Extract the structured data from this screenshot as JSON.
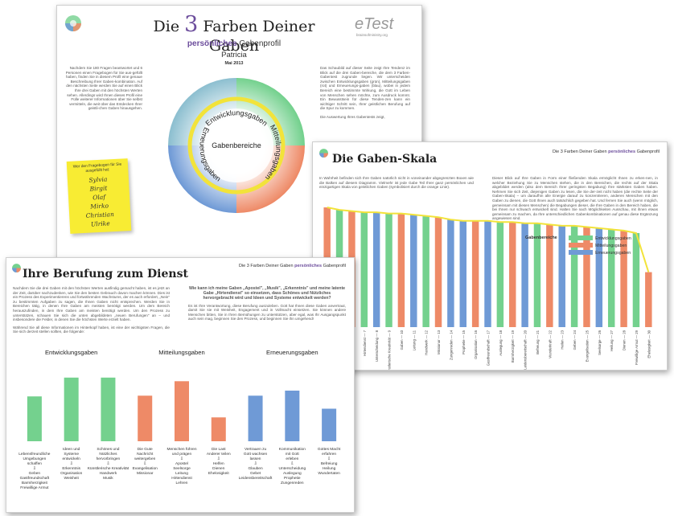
{
  "page1": {
    "title_pre": "Die",
    "title_num": "3",
    "title_post": "Farben Deiner Gaben",
    "subtitle_bold": "persönliches",
    "subtitle_rest": "Gabenprofil",
    "name": "Patricia",
    "date": "Mai 2013",
    "brand": "eTest",
    "brand_sub": "brainsofministry.org",
    "intro_left": "Nachdem Sie 180 Fragen beantwortet und 6 Personen einen Fragebogen für Sie aus-gefüllt haben, finden Sie in diesem Profil eine genaue Beschreibung Ihrer Gaben-kombination. Auf den nächsten Seite werden Sie auf einen Blick Ihre drei Gaben mit den höchsten Werten sehen. Allerdings wird Ihnen dieses Profil eine Fülle weiterer Informationen über Sie selbst vermitteln, die weit über das Entdecken Ihrer geistli-chen Gaben hinausgehen.",
    "intro_right": "Das Schaubild auf dieser Seite zeigt Ihre Tendenz im Blick auf die drei Gaben-bereiche, die dem 3 Farben-Gabentest zugrunde liegen. Wir unterscheiden zwischen Entwicklungsgaben (grün), Mitteilungsgaben (rot) und Erneuerungs-gaben (blau), wobei in jedem Bereich eine bestimmte Wirkung, die Gott im Leben von Menschen sehen möchte, zum Ausdruck kommt. Ein Bewusstsein für diese Tenden-zen kann ein wichtiger Schritt sein, Ihrer geistlichen Berufung auf die Spur zu kommen.",
    "intro_right2": "Die Auswertung Ihres Gabentests zeigt,",
    "wheel_labels": {
      "center": "Gabenbereiche",
      "top": "Entwicklungsgaben",
      "right": "Mitteilungsgaben",
      "left": "Erneuerungsgaben"
    },
    "sticky": {
      "header": "Wer den Fragebogen für Sie ausgefüllt hat:",
      "names": [
        "Sylvia",
        "Birgit",
        "Olaf",
        "Mirko",
        "Christian",
        "Ulrike"
      ]
    }
  },
  "page2": {
    "header_pre": "Die 3 Farben Deiner Gaben",
    "header_bold": "persönliches",
    "header_post": "Gabenprofil",
    "title": "Die Gaben-Skala",
    "col1": "In Wahrheit befinden sich Ihre Gaben natürlich nicht in voneinander abgegrenzten Boxen wie die Balken auf diesem Diagramm. Vielmehr ist jede Gabe Teil Ihrer ganz persönlichen und einzigartigen Skala von geistlichen Gaben (symbolisiert durch die orange Linie).",
    "col2": "Dieser Blick auf Ihre Gaben in Form einer fließenden Skala ermöglicht Ihnen zu erken-nen, in welcher Beziehung Sie zu Menschen stehen, die in den Bereichen, die rechts auf der Skala abgebildet werden (also dem Bereich Ihrer geringsten Begabung) Ihre stärksten Gaben haben. Nehmen Sie sich Zeit, diejenigen Gaben zu lesen, die Sie der-zeit nicht haben (die rechte Seite der Gaben-Skala) – um daraufhin alle Energie darauf zu konzentrieren, anderen Menschen mit den Gaben zu dienen, die Gott Ihnen auch tatsächlich gegeben hat. Und fernen Sie auch (wenn möglich, gemeinsam mit diesen Menschen) die Begabungen dieser, die Ihre Gaben in den Bereich haben, die bei Ihnen nur schwach entwickelt sind. Halten Sie nach Möglichkeiten Ausschau, mit ihnen etwas gemeinsam zu machen, da Ihre unterschiedlichen Gabenkombinationen auf genau diese Ergänzung angewiesen sind.",
    "legend": {
      "title": "Gabenbereiche",
      "items": [
        {
          "label": "Entwicklungsgaben",
          "color": "#74d18e"
        },
        {
          "label": "Mitteilungsgaben",
          "color": "#ee8a67"
        },
        {
          "label": "Erneuerungsgaben",
          "color": "#6f9ad6"
        }
      ]
    }
  },
  "page3": {
    "header_pre": "Die 3 Farben Deiner Gaben",
    "header_bold": "persönliches",
    "header_post": "Gabenprofil",
    "title": "Ihre Berufung zum Dienst",
    "col1a": "Nachdem Sie die drei Gaben mit den höchsten Werten ausfindig gemacht haben, ist es jetzt an der Zeit, darüber nachzudenken, wie Sie den besten Gebrauch davon machen können. Dies ist ein Prozess des Experimentierens und fortwährenden Wachstums, der es auch erfordert, „Nein\" zu bestimmten Aufgaben zu sagen, die Ihnen Gaben nicht entsprechen. Werden Sie in Bereichen tätig, in denen Ihre Gaben am meisten benötigt werden. Um dem Bereich herauszufinden, in dem Ihre Gaben am meisten benötigt werden. Um den Prozess zu unterstützen, schauen Sie sich die unten abgebildeten „neuen Berufungen\" an – und insbesondere die Felder, in denen Sie die höchsten Werte erzielt haben.",
    "col1b": "Während Sie all diese Informationen im Hinterkopf haben, ist eine der wichtigsten Fragen, die Sie sich derzeit stellen sollten, die folgende:",
    "question": "Wie kann ich meine Gaben „Apostel\", „Musik\", „Erkenntnis\" und meine latente Gabe „Hirtendienst\" so einsetzen, dass Schönes und Nützliches hervorgebracht wird und Ideen und Systeme entwickelt werden?",
    "col2": "Es ist Ihre Verantwortung, diese Berufung auszuleben. Gott hat Ihnen diese Gaben anvertraut, damit Sie sie mit Weisheit, Engagement und in Vollmacht einsetzen. Sie können andere Menschen bitten, Sie in Ihren Bemühungen zu unterstützen, aber egal, was Ihr Ausgangspunkt auch sein mag, beginnen Sie den Prozess, und beginnen Sie ihn umgehend!",
    "groups": [
      "Entwicklungsgaben",
      "Mitteilungsgaben",
      "Erneuerungsgaben"
    ]
  },
  "chart_data": [
    {
      "type": "bar",
      "title": "",
      "categories": [
        "Weisheit",
        "Glauben",
        "Lehren",
        "Hirtendienst",
        "Unterscheidung",
        "Künstlerische Kreativität",
        "Gaben",
        "Leitung",
        "Handwerk",
        "Missionar",
        "Zungenreden",
        "Prophetie",
        "Organisation",
        "Gastfreundschaft",
        "Auslegung",
        "Barmherzigkeit",
        "Leidensbereitschaft",
        "Befreiung",
        "Wunderkraft",
        "Heilen",
        "Geben",
        "Evangelisation",
        "Seelsorge",
        "Heilung",
        "Dienen",
        "Freiwillige Armut",
        "Ehelosigkeit"
      ],
      "tick_labels": [
        "Weisheit — 4",
        "Glauben — 5",
        "Lehren — 6",
        "Hirtendienst — 7",
        "Unterscheidung — 8",
        "Künstlerische Kreativität — 9",
        "Gaben — 10",
        "Leitung — 11",
        "Handwerk — 12",
        "Missionar — 13",
        "Zungenreden — 14",
        "Prophetie — 15",
        "Organisation — 16",
        "Gastfreundschaft — 17",
        "Auslegung — 18",
        "Barmherzigkeit — 19",
        "Leidensbereitschaft — 20",
        "Befreiung — 21",
        "Wunderkraft — 22",
        "Heilen — 23",
        "Geben — 24",
        "Evangelisation — 25",
        "Seelsorge — 26",
        "Heilung — 27",
        "Dienen — 28",
        "Freiwillige Armut — 29",
        "Ehelosigkeit — 30"
      ],
      "group": [
        "red",
        "green",
        "red",
        "green",
        "blue",
        "green",
        "red",
        "blue",
        "green",
        "red",
        "blue",
        "blue",
        "red",
        "blue",
        "green",
        "red",
        "blue",
        "green",
        "red",
        "blue",
        "green",
        "red",
        "blue",
        "green",
        "red",
        "green",
        "red"
      ],
      "values": [
        98,
        96,
        95,
        94,
        94,
        93,
        93,
        92,
        91,
        90,
        88,
        87,
        87,
        87,
        86,
        86,
        85,
        85,
        84,
        83,
        83,
        82,
        81,
        80,
        79,
        77,
        45
      ],
      "legend": [
        "Entwicklungsgaben",
        "Mitteilungsgaben",
        "Erneuerungsgaben"
      ],
      "ylim": [
        0,
        100
      ]
    },
    {
      "type": "bar",
      "title": "",
      "categories": [
        "Lebensfreundliche Umgebungen schaffen",
        "Ideen und Systeme entwickeln",
        "Schönes und Nützliches hervorbringen",
        "Die Gute Nachricht weitergeben",
        "Menschen führen und prägen",
        "Die Last Anderer teilen",
        "Vertrauen zu Gott wachsen lassen",
        "Kommunikation mit Gott erleben",
        "Gottes Macht erfahren"
      ],
      "gifts": [
        [
          "Geben",
          "Gastfreundschaft",
          "Barmherzigkeit",
          "Freiwillige Armut"
        ],
        [
          "Erkenntnis",
          "Organisation",
          "Weisheit"
        ],
        [
          "Künstlerische Kreativität",
          "Handwerk",
          "Musik"
        ],
        [
          "Evangelisation",
          "Missionar"
        ],
        [
          "Apostel",
          "Seelsorge",
          "Leitung",
          "Hirtendienst",
          "Lehren"
        ],
        [
          "Helfen",
          "Dienen",
          "Ehelosigkeit"
        ],
        [
          "Glauben",
          "Gebet",
          "Leidensbereitschaft"
        ],
        [
          "Unterscheidung",
          "Auslegung",
          "Prophetie",
          "Zungenreden"
        ],
        [
          "Befreiung",
          "Heilung",
          "Wundertaten"
        ]
      ],
      "group": [
        "green",
        "green",
        "green",
        "red",
        "red",
        "red",
        "blue",
        "blue",
        "blue"
      ],
      "groups": [
        "Entwicklungsgaben",
        "Mitteilungsgaben",
        "Erneuerungsgaben"
      ],
      "values": [
        62,
        88,
        88,
        63,
        83,
        33,
        63,
        70,
        45
      ],
      "ylim": [
        0,
        100
      ]
    }
  ],
  "colors": {
    "green": "#74d18e",
    "red": "#ee8a67",
    "blue": "#6f9ad6",
    "line": "#f2e33a",
    "accent": "#6c4d9c"
  }
}
